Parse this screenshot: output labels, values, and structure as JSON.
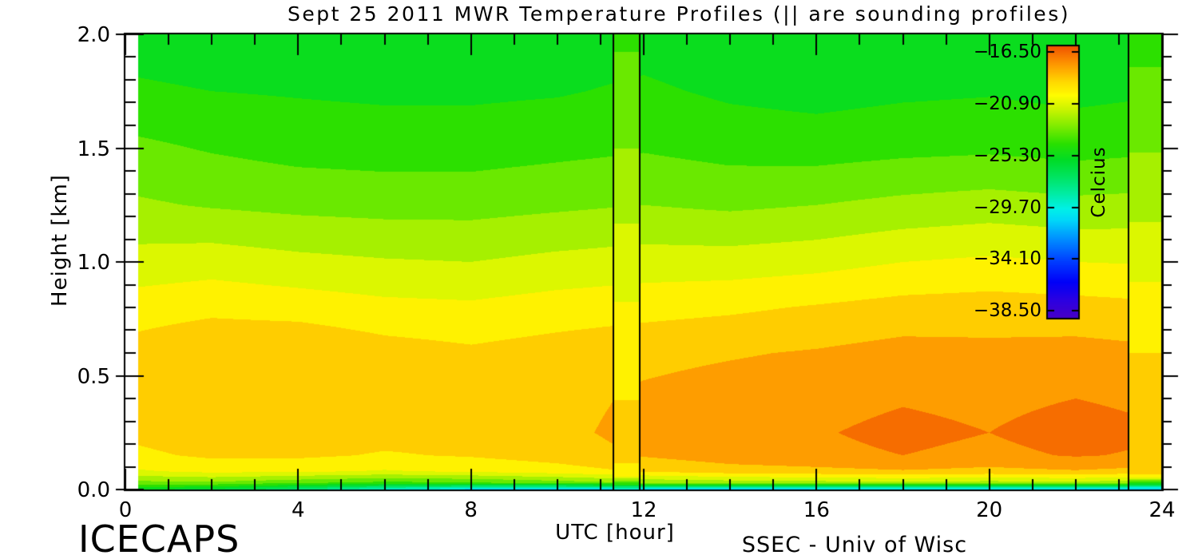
{
  "page": {
    "background": "#ffffff"
  },
  "chart_data": {
    "type": "heatmap",
    "title": "Sept 25 2011 MWR Temperature Profiles (|| are sounding profiles)",
    "x_axis": {
      "label": "UTC [hour]",
      "range": [
        0,
        24
      ],
      "minor_tick_step": 1,
      "ticks": [
        {
          "value": 0,
          "label": "0"
        },
        {
          "value": 4,
          "label": "4"
        },
        {
          "value": 8,
          "label": "8"
        },
        {
          "value": 12,
          "label": "12"
        },
        {
          "value": 16,
          "label": "16"
        },
        {
          "value": 20,
          "label": "20"
        },
        {
          "value": 24,
          "label": "24"
        }
      ]
    },
    "y_axis": {
      "label": "Height [km]",
      "range": [
        0,
        2
      ],
      "minor_tick_step": 0.1,
      "ticks": [
        {
          "value": 2.0,
          "label": "2.0"
        },
        {
          "value": 1.5,
          "label": "1.5"
        },
        {
          "value": 1.0,
          "label": "1.0"
        },
        {
          "value": 0.5,
          "label": "0.5"
        },
        {
          "value": 0.0,
          "label": "0.0"
        }
      ]
    },
    "colorbar": {
      "label": "Celcius",
      "value_min": -39.1,
      "value_max": -16.0,
      "band_step_c": 1.1,
      "ticks": [
        {
          "value": -16.5,
          "label": "−16.50"
        },
        {
          "value": -20.9,
          "label": "−20.90"
        },
        {
          "value": -25.3,
          "label": "−25.30"
        },
        {
          "value": -29.7,
          "label": "−29.70"
        },
        {
          "value": -34.1,
          "label": "−34.10"
        },
        {
          "value": -38.5,
          "label": "−38.50"
        }
      ],
      "gradient_stops": [
        [
          0.0,
          "#4600c8"
        ],
        [
          0.06,
          "#2d00e0"
        ],
        [
          0.13,
          "#0000f8"
        ],
        [
          0.21,
          "#0040ff"
        ],
        [
          0.29,
          "#0090ff"
        ],
        [
          0.36,
          "#00d8f8"
        ],
        [
          0.4,
          "#00f0e8"
        ],
        [
          0.46,
          "#00eca0"
        ],
        [
          0.52,
          "#00e460"
        ],
        [
          0.58,
          "#00dc28"
        ],
        [
          0.64,
          "#28e000"
        ],
        [
          0.71,
          "#84ec00"
        ],
        [
          0.77,
          "#ccf400"
        ],
        [
          0.82,
          "#fffc00"
        ],
        [
          0.87,
          "#ffd800"
        ],
        [
          0.91,
          "#ffb000"
        ],
        [
          0.95,
          "#fc8800"
        ],
        [
          1.0,
          "#f05400"
        ]
      ]
    },
    "data_start_hour": 0.28,
    "grid": {
      "hours": [
        0,
        2,
        4,
        6,
        8,
        10,
        12,
        14,
        16,
        18,
        20,
        22,
        24
      ],
      "heights_km": [
        0.0,
        0.03,
        0.08,
        0.15,
        0.25,
        0.4,
        0.6,
        0.8,
        1.0,
        1.25,
        1.5,
        1.75,
        2.0
      ],
      "temps_c": [
        [
          -25.8,
          -26.3,
          -27.8,
          -29.5,
          -30.8,
          -31.3,
          -31.3,
          -31.0,
          -30.8,
          -30.8,
          -30.8,
          -30.8,
          -31.3
        ],
        [
          -23.0,
          -22.8,
          -23.5,
          -24.0,
          -23.8,
          -23.2,
          -22.5,
          -22.2,
          -22.0,
          -21.8,
          -22.0,
          -21.8,
          -22.5
        ],
        [
          -20.6,
          -20.1,
          -20.2,
          -20.5,
          -20.2,
          -19.8,
          -19.2,
          -18.7,
          -18.5,
          -18.3,
          -18.5,
          -18.3,
          -18.6
        ],
        [
          -19.6,
          -19.1,
          -19.1,
          -19.4,
          -19.2,
          -18.8,
          -18.1,
          -17.6,
          -17.4,
          -17.1,
          -17.4,
          -17.0,
          -17.3
        ],
        [
          -19.1,
          -18.6,
          -18.7,
          -18.9,
          -18.9,
          -18.5,
          -17.8,
          -17.4,
          -17.2,
          -16.8,
          -17.1,
          -16.6,
          -17.0
        ],
        [
          -18.9,
          -18.4,
          -18.5,
          -18.7,
          -18.9,
          -18.6,
          -18.0,
          -17.7,
          -17.5,
          -17.2,
          -17.4,
          -17.1,
          -17.4
        ],
        [
          -18.9,
          -18.3,
          -18.2,
          -18.8,
          -19.1,
          -18.8,
          -18.5,
          -18.3,
          -18.1,
          -17.8,
          -17.9,
          -17.8,
          -18.0
        ],
        [
          -19.9,
          -19.6,
          -19.8,
          -20.1,
          -20.2,
          -19.9,
          -19.7,
          -19.5,
          -19.2,
          -18.9,
          -18.8,
          -18.9,
          -19.1
        ],
        [
          -21.1,
          -20.9,
          -21.2,
          -21.4,
          -21.5,
          -21.2,
          -21.0,
          -21.0,
          -20.8,
          -20.4,
          -20.2,
          -20.4,
          -20.5
        ],
        [
          -22.4,
          -22.7,
          -22.9,
          -23.0,
          -23.0,
          -22.8,
          -22.6,
          -22.8,
          -22.6,
          -22.3,
          -22.1,
          -22.3,
          -22.2
        ],
        [
          -23.4,
          -23.8,
          -24.1,
          -24.2,
          -24.2,
          -24.0,
          -23.8,
          -24.1,
          -24.2,
          -24.0,
          -23.9,
          -24.1,
          -23.9
        ],
        [
          -24.6,
          -24.8,
          -24.9,
          -25.0,
          -25.0,
          -24.9,
          -24.6,
          -25.0,
          -25.2,
          -25.0,
          -24.9,
          -25.1,
          -24.9
        ],
        [
          -25.3,
          -25.5,
          -25.6,
          -25.7,
          -25.7,
          -25.5,
          -25.3,
          -25.7,
          -25.9,
          -25.8,
          -25.7,
          -25.9,
          -25.7
        ]
      ]
    },
    "soundings": [
      {
        "start_hour": 11.3,
        "end_hour": 11.91,
        "heights_km": [
          0.0,
          0.02,
          0.06,
          0.15,
          0.35,
          0.6,
          0.9,
          1.2,
          1.5,
          2.0
        ],
        "temps_c": [
          -30.5,
          -25.0,
          -20.0,
          -18.9,
          -19.2,
          -19.8,
          -20.6,
          -21.6,
          -22.6,
          -23.9
        ]
      },
      {
        "start_hour": 23.22,
        "end_hour": 24.0,
        "heights_km": [
          0.0,
          0.02,
          0.06,
          0.15,
          0.4,
          0.6,
          0.8,
          1.0,
          1.3,
          1.6,
          2.0
        ],
        "temps_c": [
          -31.8,
          -26.0,
          -19.4,
          -18.3,
          -18.5,
          -19.3,
          -19.9,
          -20.8,
          -22.0,
          -23.0,
          -24.1
        ]
      }
    ],
    "annotations": {
      "project": "ICECAPS",
      "credit": "SSEC - Univ of Wisc"
    }
  }
}
